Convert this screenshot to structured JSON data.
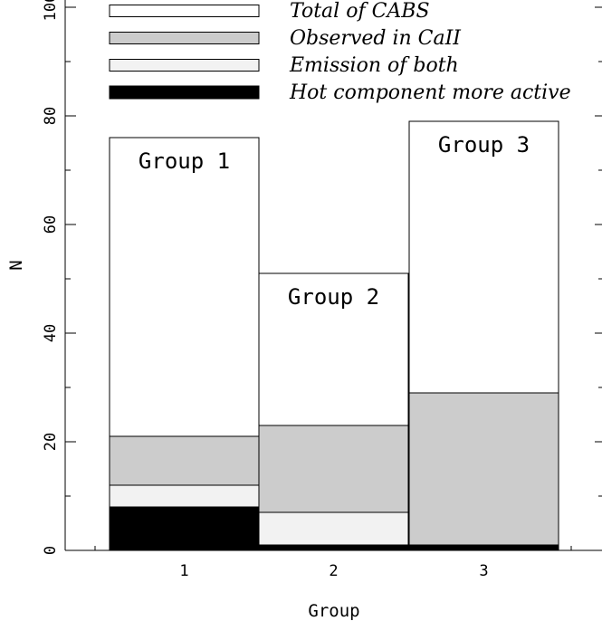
{
  "chart_data": {
    "type": "bar",
    "title": "",
    "xlabel": "Group",
    "ylabel": "N",
    "ylim": [
      0,
      100
    ],
    "yticks": [
      "0",
      "20",
      "40",
      "60",
      "80",
      "100"
    ],
    "categories": [
      "1",
      "2",
      "3"
    ],
    "bar_labels": [
      "Group 1",
      "Group 2",
      "Group 3"
    ],
    "series": [
      {
        "name": "Total of CABS",
        "values": [
          76,
          51,
          79
        ],
        "color": "#ffffff"
      },
      {
        "name": "Observed in CaII",
        "values": [
          21,
          23,
          29
        ],
        "color": "#cccccc"
      },
      {
        "name": "Emission of both",
        "values": [
          12,
          7,
          1
        ],
        "color": "#f2f2f2"
      },
      {
        "name": "Hot component more active",
        "values": [
          8,
          1,
          1
        ],
        "color": "#000000"
      }
    ],
    "legend_position": "top"
  }
}
